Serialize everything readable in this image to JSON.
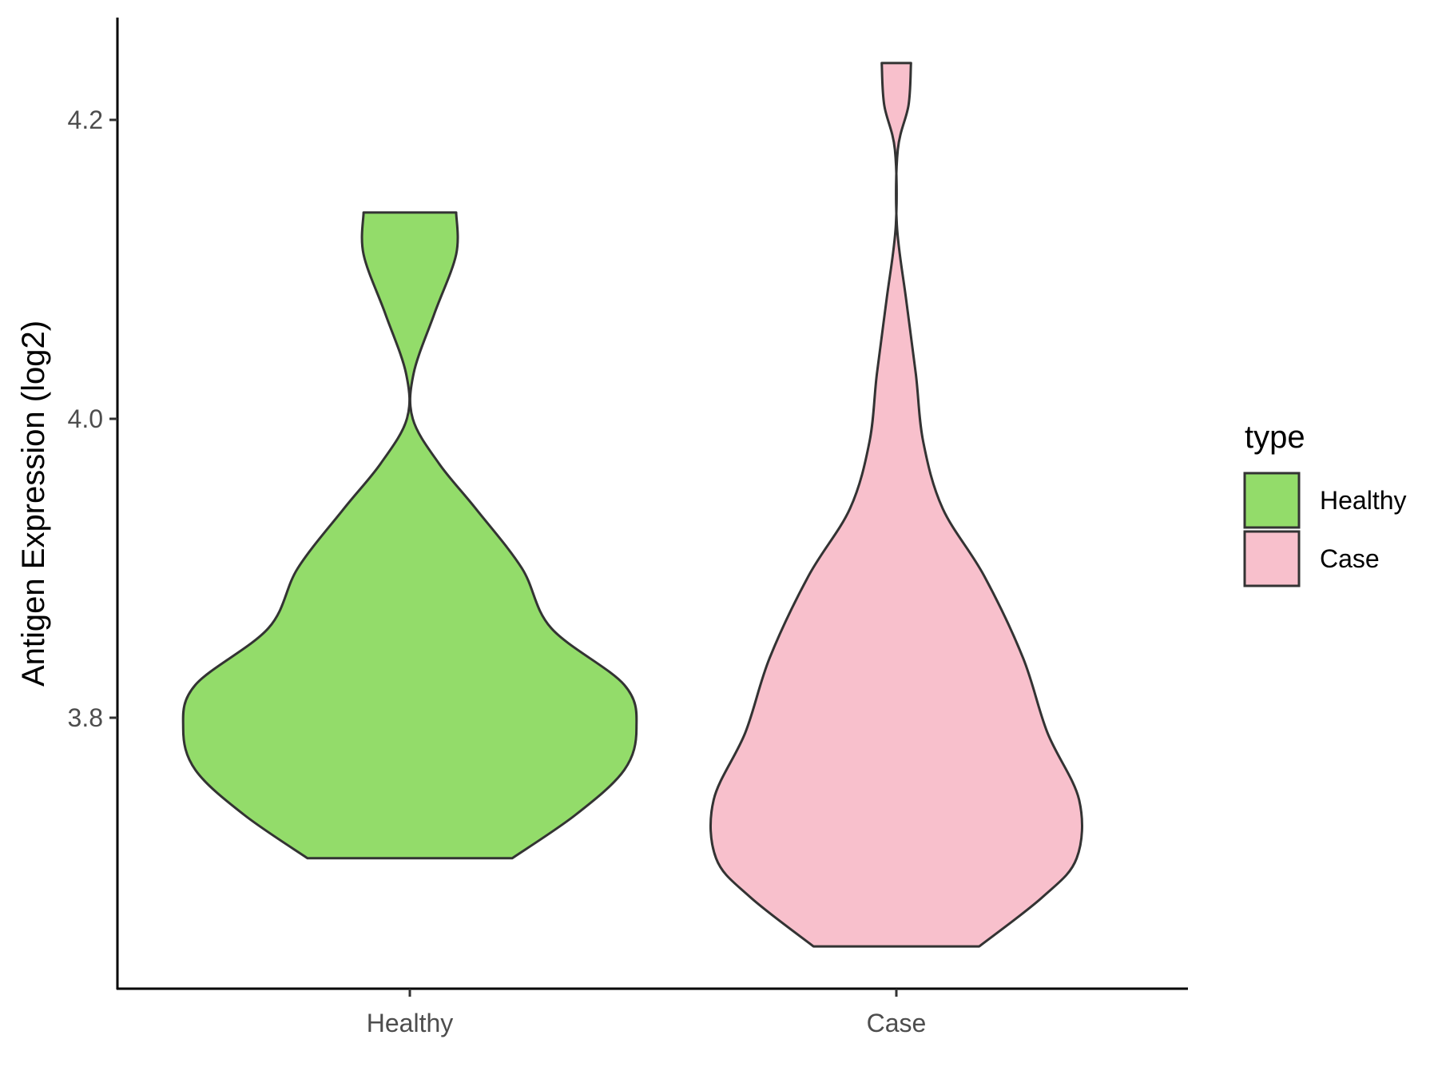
{
  "chart_data": {
    "type": "violin",
    "title": "",
    "xlabel": "",
    "ylabel": "Antigen Expression (log2)",
    "categories": [
      "Healthy",
      "Case"
    ],
    "y_ticks": [
      3.8,
      4.0,
      4.2
    ],
    "y_tick_labels": [
      "3.8",
      "4.0",
      "4.2"
    ],
    "ylim": [
      3.623,
      4.272
    ],
    "grid": false,
    "legend": {
      "title": "type",
      "position": "right",
      "entries": [
        {
          "label": "Healthy",
          "color": "#93DC6A"
        },
        {
          "label": "Case",
          "color": "#F8C0CC"
        }
      ]
    },
    "series": [
      {
        "category": "Healthy",
        "color": "#93DC6A",
        "profile": [
          {
            "y": 3.706,
            "w": 0.42
          },
          {
            "y": 3.735,
            "w": 0.68
          },
          {
            "y": 3.765,
            "w": 0.88
          },
          {
            "y": 3.793,
            "w": 0.93
          },
          {
            "y": 3.822,
            "w": 0.88
          },
          {
            "y": 3.86,
            "w": 0.58
          },
          {
            "y": 3.9,
            "w": 0.46
          },
          {
            "y": 3.94,
            "w": 0.27
          },
          {
            "y": 3.97,
            "w": 0.12
          },
          {
            "y": 4.0,
            "w": 0.012
          },
          {
            "y": 4.03,
            "w": 0.015
          },
          {
            "y": 4.07,
            "w": 0.1
          },
          {
            "y": 4.11,
            "w": 0.19
          },
          {
            "y": 4.138,
            "w": 0.19
          }
        ]
      },
      {
        "category": "Case",
        "color": "#F8C0CC",
        "profile": [
          {
            "y": 3.647,
            "w": 0.34
          },
          {
            "y": 3.68,
            "w": 0.6
          },
          {
            "y": 3.706,
            "w": 0.74
          },
          {
            "y": 3.745,
            "w": 0.75
          },
          {
            "y": 3.79,
            "w": 0.62
          },
          {
            "y": 3.84,
            "w": 0.52
          },
          {
            "y": 3.895,
            "w": 0.36
          },
          {
            "y": 3.94,
            "w": 0.19
          },
          {
            "y": 3.985,
            "w": 0.11
          },
          {
            "y": 4.03,
            "w": 0.08
          },
          {
            "y": 4.08,
            "w": 0.04
          },
          {
            "y": 4.13,
            "w": 0.002
          },
          {
            "y": 4.18,
            "w": 0.006
          },
          {
            "y": 4.21,
            "w": 0.05
          },
          {
            "y": 4.238,
            "w": 0.06
          }
        ]
      }
    ]
  }
}
